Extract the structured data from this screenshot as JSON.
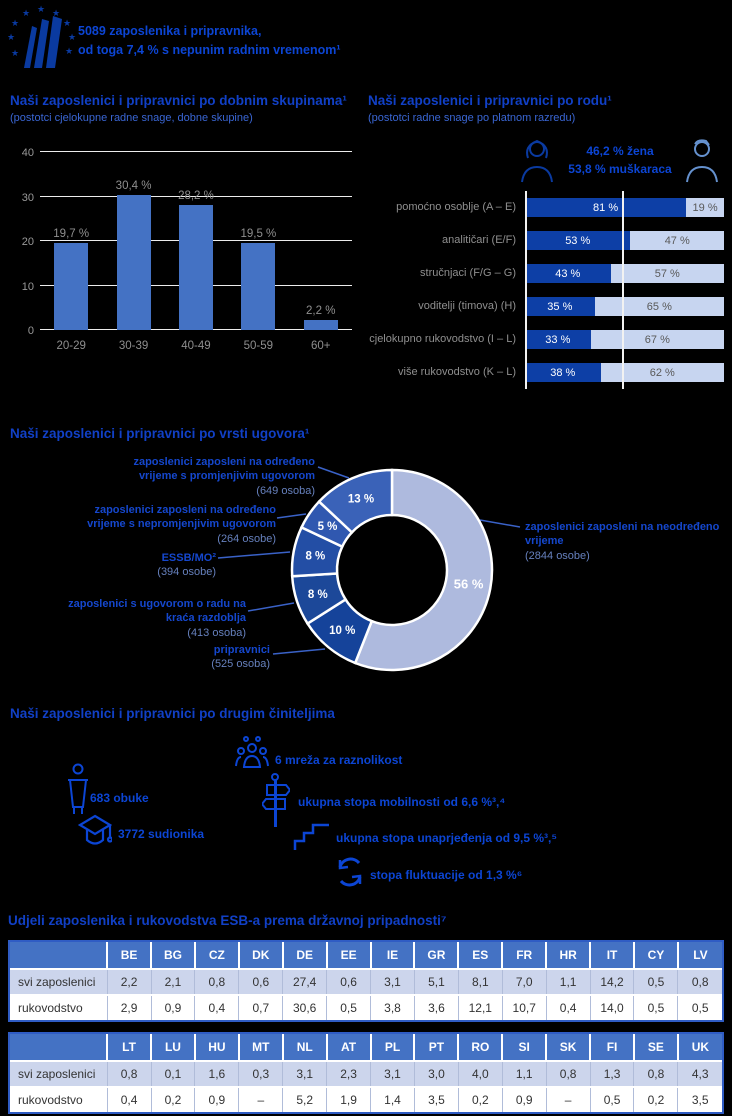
{
  "colors": {
    "accent_blue": "#0c45d4",
    "title_blue": "#1140c6",
    "subtitle_blue": "#3a66d4",
    "bar_blue": "#4472c4",
    "stacked_dark_blue": "#0d3fa6",
    "stacked_light_blue": "#c7d5f0",
    "donut_light": "#aebade",
    "table_header_blue": "#4472c4",
    "table_row_lavender": "#ccd5ec",
    "gray_label": "#8f8f8f"
  },
  "header": {
    "logo": "ecb-stars-tower-logo",
    "line1": "5089 zaposlenika i pripravnika,",
    "line2": "od toga 7,4 % s nepunim radnim vremenom¹"
  },
  "gender_section": {
    "women_share": "46,2 % žena",
    "men_share": "53,8 % muškaraca",
    "woman_icon": "woman-icon",
    "man_icon": "man-icon"
  },
  "factors_section": {
    "title": "Naši zaposlenici i pripravnici po drugim činiteljima",
    "stats": [
      {
        "icon": "trainer-podium-icon",
        "label": "683 obuke"
      },
      {
        "icon": "graduation-cap-icon",
        "label": "3772 sudionika"
      },
      {
        "icon": "people-group-icon",
        "label": "6 mreža za raznolikost"
      },
      {
        "icon": "signpost-icon",
        "label": "ukupna stopa mobilnosti od 6,6 %³,⁴"
      },
      {
        "icon": "stairs-icon",
        "label": "ukupna stopa unaprjeđenja od 9,5 %³,⁵"
      },
      {
        "icon": "cycle-arrows-icon",
        "label": "stopa fluktuacije od 1,3 %⁶"
      }
    ]
  },
  "nationality_section": {
    "title": "Udjeli zaposlenika i rukovodstva ESB-a prema državnoj pripadnosti⁷"
  },
  "chart_data": [
    {
      "type": "bar",
      "title": "Naši zaposlenici i pripravnici po dobnim skupinama¹",
      "subtitle": "(postotci cjelokupne radne snage, dobne skupine)",
      "categories": [
        "20-29",
        "30-39",
        "40-49",
        "50-59",
        "60+"
      ],
      "values": [
        19.7,
        30.4,
        28.2,
        19.5,
        2.2
      ],
      "value_labels": [
        "19,7 %",
        "30,4 %",
        "28,2 %",
        "19,5 %",
        "2,2 %"
      ],
      "xlabel": "",
      "ylabel": "",
      "ylim": [
        0,
        40
      ],
      "yticks": [
        0,
        10,
        20,
        30,
        40
      ],
      "grid": true,
      "bar_color": "#4472c4"
    },
    {
      "type": "stacked-bar-horizontal",
      "title": "Naši zaposlenici i pripravnici po rodu¹",
      "subtitle": "(postotci radne snage po platnom razredu)",
      "categories": [
        "pomoćno osoblje (A – E)",
        "analitičari (E/F)",
        "stručnjaci (F/G – G)",
        "voditelji (timova) (H)",
        "cjelokupno rukovodstvo (I – L)",
        "više rukovodstvo (K – L)"
      ],
      "series": [
        {
          "name": "žene",
          "color": "#0d3fa6",
          "values": [
            81,
            53,
            43,
            35,
            33,
            38
          ],
          "labels": [
            "81 %",
            "53 %",
            "43 %",
            "35 %",
            "33 %",
            "38 %"
          ]
        },
        {
          "name": "muškarci",
          "color": "#c7d5f0",
          "values": [
            19,
            47,
            57,
            65,
            67,
            62
          ],
          "labels": [
            "19 %",
            "47 %",
            "57 %",
            "65 %",
            "67 %",
            "62 %"
          ]
        }
      ],
      "xlim": [
        0,
        100
      ]
    },
    {
      "type": "pie",
      "title": "Naši zaposlenici i pripravnici po vrsti ugovora¹",
      "donut": true,
      "slices": [
        {
          "label": "zaposlenici zaposleni na neodređeno vrijeme",
          "count": "(2844 osobe)",
          "pct": 56,
          "pct_label": "56 %",
          "color": "#aebade"
        },
        {
          "label": "pripravnici",
          "count": "(525 osoba)",
          "pct": 10,
          "pct_label": "10 %",
          "color": "#15439a"
        },
        {
          "label": "zaposlenici s ugovorom o radu na kraća razdoblja",
          "count": "(413 osoba)",
          "pct": 8,
          "pct_label": "8 %",
          "color": "#1c4899"
        },
        {
          "label": "ESSB/MO²",
          "count": "(394 osobe)",
          "pct": 8,
          "pct_label": "8 %",
          "color": "#234ea5"
        },
        {
          "label": "zaposlenici zaposleni na određeno vrijeme s nepromjenjivim ugovorom",
          "count": "(264 osobe)",
          "pct": 5,
          "pct_label": "5 %",
          "color": "#3058b0"
        },
        {
          "label": "zaposlenici zaposleni na određeno vrijeme s promjenjivim ugovorom",
          "count": "(649 osoba)",
          "pct": 13,
          "pct_label": "13 %",
          "color": "#3a62b8"
        }
      ]
    },
    {
      "type": "table",
      "title": "Udjeli zaposlenika i rukovodstva ESB-a prema državnoj pripadnosti⁷ (1/2)",
      "row_labels": [
        "svi zaposlenici",
        "rukovodstvo"
      ],
      "columns": [
        "BE",
        "BG",
        "CZ",
        "DK",
        "DE",
        "EE",
        "IE",
        "GR",
        "ES",
        "FR",
        "HR",
        "IT",
        "CY",
        "LV"
      ],
      "rows": [
        [
          "2,2",
          "2,1",
          "0,8",
          "0,6",
          "27,4",
          "0,6",
          "3,1",
          "5,1",
          "8,1",
          "7,0",
          "1,1",
          "14,2",
          "0,5",
          "0,8"
        ],
        [
          "2,9",
          "0,9",
          "0,4",
          "0,7",
          "30,6",
          "0,5",
          "3,8",
          "3,6",
          "12,1",
          "10,7",
          "0,4",
          "14,0",
          "0,5",
          "0,5"
        ]
      ]
    },
    {
      "type": "table",
      "title": "Udjeli zaposlenika i rukovodstva ESB-a prema državnoj pripadnosti⁷ (2/2)",
      "row_labels": [
        "svi zaposlenici",
        "rukovodstvo"
      ],
      "columns": [
        "LT",
        "LU",
        "HU",
        "MT",
        "NL",
        "AT",
        "PL",
        "PT",
        "RO",
        "SI",
        "SK",
        "FI",
        "SE",
        "UK"
      ],
      "rows": [
        [
          "0,8",
          "0,1",
          "1,6",
          "0,3",
          "3,1",
          "2,3",
          "3,1",
          "3,0",
          "4,0",
          "1,1",
          "0,8",
          "1,3",
          "0,8",
          "4,3"
        ],
        [
          "0,4",
          "0,2",
          "0,9",
          "–",
          "5,2",
          "1,9",
          "1,4",
          "3,5",
          "0,2",
          "0,9",
          "–",
          "0,5",
          "0,2",
          "3,5"
        ]
      ]
    }
  ]
}
